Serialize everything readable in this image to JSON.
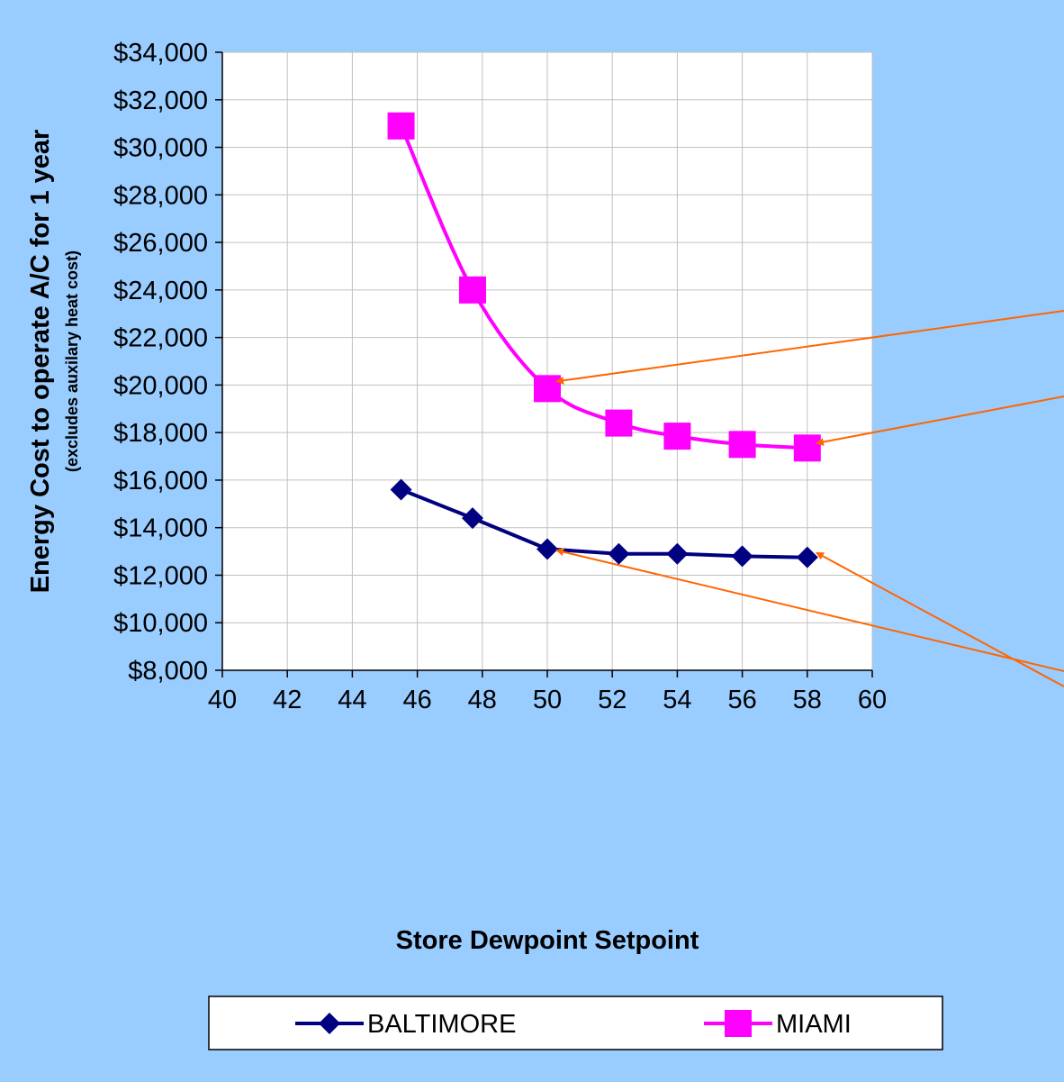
{
  "chart_data": {
    "type": "line",
    "xlabel": "Store Dewpoint Setpoint",
    "ylabel": "Energy Cost to operate A/C for 1 year",
    "ylabel_sub": "(excludes auxilary heat cost)",
    "xlim": [
      40,
      60
    ],
    "ylim": [
      8000,
      34000
    ],
    "x_ticks": [
      40,
      42,
      44,
      46,
      48,
      50,
      52,
      54,
      56,
      58,
      60
    ],
    "x_tick_labels": [
      "40",
      "42",
      "44",
      "46",
      "48",
      "50",
      "52",
      "54",
      "56",
      "58",
      "60"
    ],
    "y_ticks": [
      8000,
      10000,
      12000,
      14000,
      16000,
      18000,
      20000,
      22000,
      24000,
      26000,
      28000,
      30000,
      32000,
      34000
    ],
    "y_tick_labels": [
      "$8,000",
      "$10,000",
      "$12,000",
      "$14,000",
      "$16,000",
      "$18,000",
      "$20,000",
      "$22,000",
      "$24,000",
      "$26,000",
      "$28,000",
      "$30,000",
      "$32,000",
      "$34,000"
    ],
    "grid": true,
    "legend_position": "bottom",
    "series": [
      {
        "name": "BALTIMORE",
        "color": "#000080",
        "marker": "diamond",
        "x": [
          45.5,
          47.7,
          50,
          52.2,
          54,
          56,
          58
        ],
        "y": [
          15600,
          14400,
          13100,
          12900,
          12900,
          12800,
          12750
        ]
      },
      {
        "name": "MIAMI",
        "color": "#ff00ff",
        "marker": "square",
        "x": [
          45.5,
          47.7,
          50,
          52.2,
          54,
          56,
          58
        ],
        "y": [
          30900,
          24000,
          19850,
          18400,
          17850,
          17500,
          17350
        ]
      }
    ],
    "annotations": [
      {
        "type": "arrow",
        "color": "#ff6600",
        "from_edge": "right",
        "to": {
          "x": 50,
          "y": 20150
        }
      },
      {
        "type": "arrow",
        "color": "#ff6600",
        "from_edge": "right",
        "to": {
          "x": 58,
          "y": 17550
        }
      },
      {
        "type": "arrow",
        "color": "#ff6600",
        "from_edge": "right",
        "to": {
          "x": 50,
          "y": 13050
        }
      },
      {
        "type": "arrow",
        "color": "#ff6600",
        "from_edge": "right",
        "to": {
          "x": 58,
          "y": 12950
        }
      }
    ]
  },
  "colors": {
    "background": "#99ccff",
    "plot_area": "#ffffff",
    "grid": "#c0c0c0",
    "arrow": "#ff6600"
  }
}
